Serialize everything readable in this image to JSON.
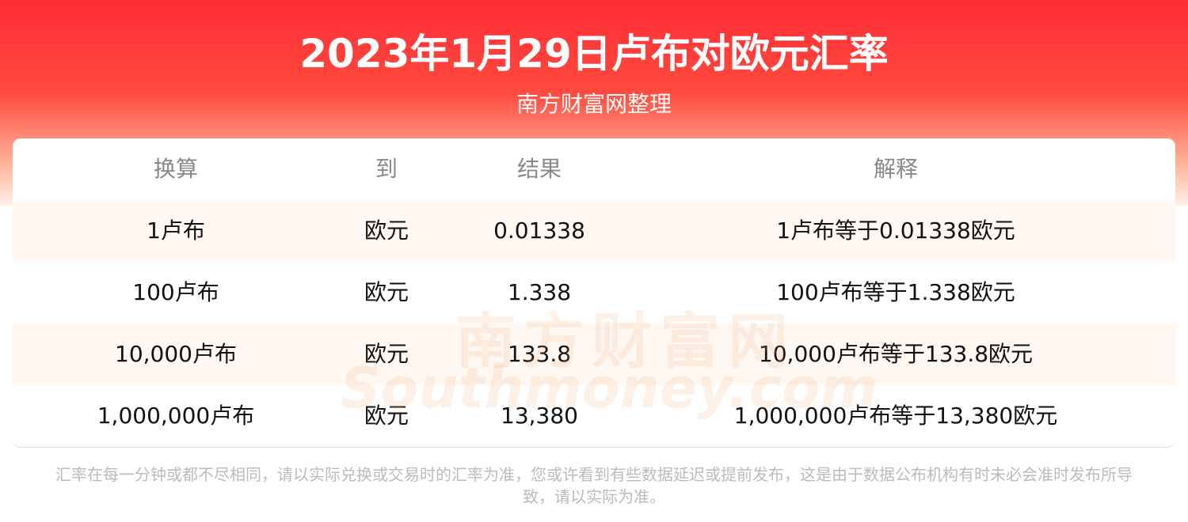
{
  "header": {
    "title": "2023年1月29日卢布对欧元汇率",
    "subtitle": "南方财富网整理"
  },
  "table": {
    "columns": [
      "换算",
      "到",
      "结果",
      "解释"
    ],
    "rows": [
      [
        "1卢布",
        "欧元",
        "0.01338",
        "1卢布等于0.01338欧元"
      ],
      [
        "100卢布",
        "欧元",
        "1.338",
        "100卢布等于1.338欧元"
      ],
      [
        "10,000卢布",
        "欧元",
        "133.8",
        "10,000卢布等于133.8欧元"
      ],
      [
        "1,000,000卢布",
        "欧元",
        "13,380",
        "1,000,000卢布等于13,380欧元"
      ]
    ]
  },
  "watermark": {
    "name": "南方财富网",
    "site": "Southmoney.com"
  },
  "footer": {
    "note": "汇率在每一分钟或都不尽相同，请以实际兑换或交易时的汇率为准，您或许看到有些数据延迟或提前发布，这是由于数据公布机构有时未必会准时发布所导致，请以实际为准。"
  }
}
